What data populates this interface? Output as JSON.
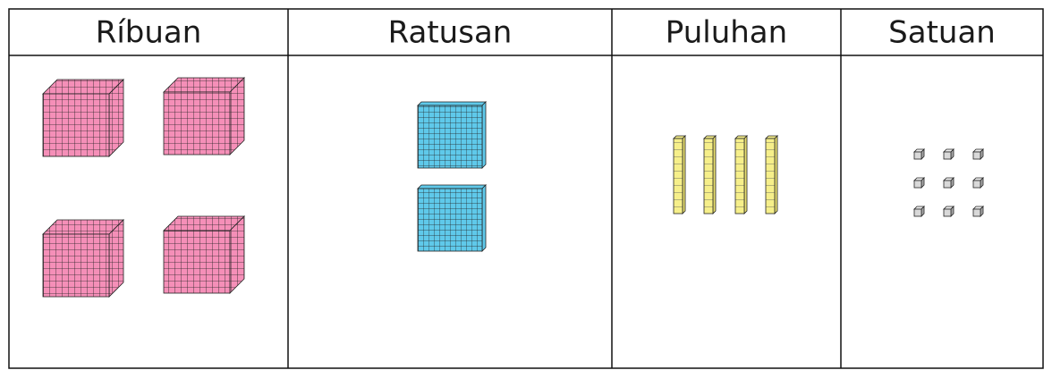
{
  "table": {
    "headers": [
      "Ríbuan",
      "Ratusan",
      "Puluhan",
      "Satuan"
    ]
  }
}
